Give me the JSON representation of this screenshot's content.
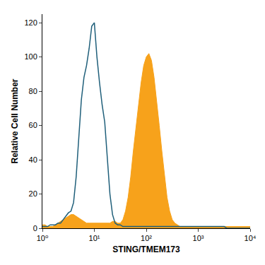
{
  "chart_data": {
    "type": "line",
    "x_label": "STING/TMEM173",
    "y_label": "Relative Cell Number",
    "log": "x",
    "grid": false,
    "xlim": [
      1,
      10000
    ],
    "xticks": [
      {
        "value": 1,
        "label": "10⁰"
      },
      {
        "value": 10,
        "label": "10¹"
      },
      {
        "value": 100,
        "label": "10²"
      },
      {
        "value": 1000,
        "label": "10³"
      },
      {
        "value": 10000,
        "label": "10⁴"
      }
    ],
    "ylim": [
      0,
      125
    ],
    "yticks": [
      0,
      20,
      40,
      60,
      80,
      100,
      120
    ],
    "x": [
      1,
      1.122,
      1.259,
      1.413,
      1.585,
      1.778,
      1.995,
      2.239,
      2.512,
      2.818,
      3.162,
      3.548,
      3.981,
      4.467,
      5.012,
      5.623,
      6.31,
      7.079,
      7.943,
      8.913,
      10,
      11.22,
      12.59,
      14.13,
      15.85,
      17.78,
      19.95,
      22.39,
      25.12,
      28.18,
      31.62,
      35.48,
      39.81,
      44.67,
      50.12,
      56.23,
      63.1,
      70.79,
      79.43,
      89.13,
      100,
      112.2,
      125.9,
      141.3,
      158.5,
      177.8,
      199.5,
      223.9,
      251.2,
      281.8,
      316.2,
      354.8,
      398.1,
      446.7,
      501.2,
      562.3,
      631,
      707.9,
      794.3,
      891.3,
      1000,
      1122,
      1259,
      1413,
      1585,
      1778,
      1995,
      2239,
      2512,
      2818,
      3162,
      3548,
      3981,
      4467,
      5012,
      5623,
      6310,
      7079,
      7943,
      8913,
      10000
    ],
    "series": [
      {
        "type": "area",
        "color": "#f7a21b",
        "values": [
          2,
          2,
          1,
          1,
          1,
          2,
          3,
          4,
          5,
          6,
          7,
          8,
          8,
          7,
          6,
          5,
          4,
          3,
          3,
          3,
          3,
          3,
          3,
          3,
          3,
          3,
          3,
          4,
          4,
          3,
          3,
          5,
          10,
          18,
          30,
          45,
          58,
          72,
          85,
          95,
          100,
          102,
          98,
          88,
          75,
          60,
          45,
          30,
          18,
          10,
          5,
          3,
          2,
          1,
          1,
          1,
          1,
          1,
          1,
          1,
          1,
          1,
          1,
          1,
          1,
          1,
          1,
          1,
          1,
          1,
          1,
          1,
          1,
          1,
          1,
          1,
          1,
          1,
          1,
          1,
          1
        ]
      },
      {
        "type": "line",
        "color": "#1f5f7a",
        "values": [
          1,
          1,
          1,
          2,
          2,
          2,
          3,
          3,
          5,
          7,
          9,
          10,
          15,
          30,
          55,
          75,
          88,
          95,
          105,
          118,
          120,
          100,
          85,
          72,
          62,
          40,
          20,
          8,
          3,
          2,
          2,
          1,
          1,
          1,
          1,
          1,
          1,
          1,
          1,
          1,
          1,
          1,
          1,
          1,
          1,
          1,
          1,
          1,
          1,
          1,
          1,
          1,
          1,
          1,
          1,
          1,
          1,
          1,
          1,
          1,
          1,
          1,
          1,
          1,
          1,
          1,
          1,
          1,
          1,
          1,
          1,
          0,
          0,
          0,
          0,
          0,
          0,
          0,
          0,
          0,
          0
        ]
      }
    ]
  }
}
